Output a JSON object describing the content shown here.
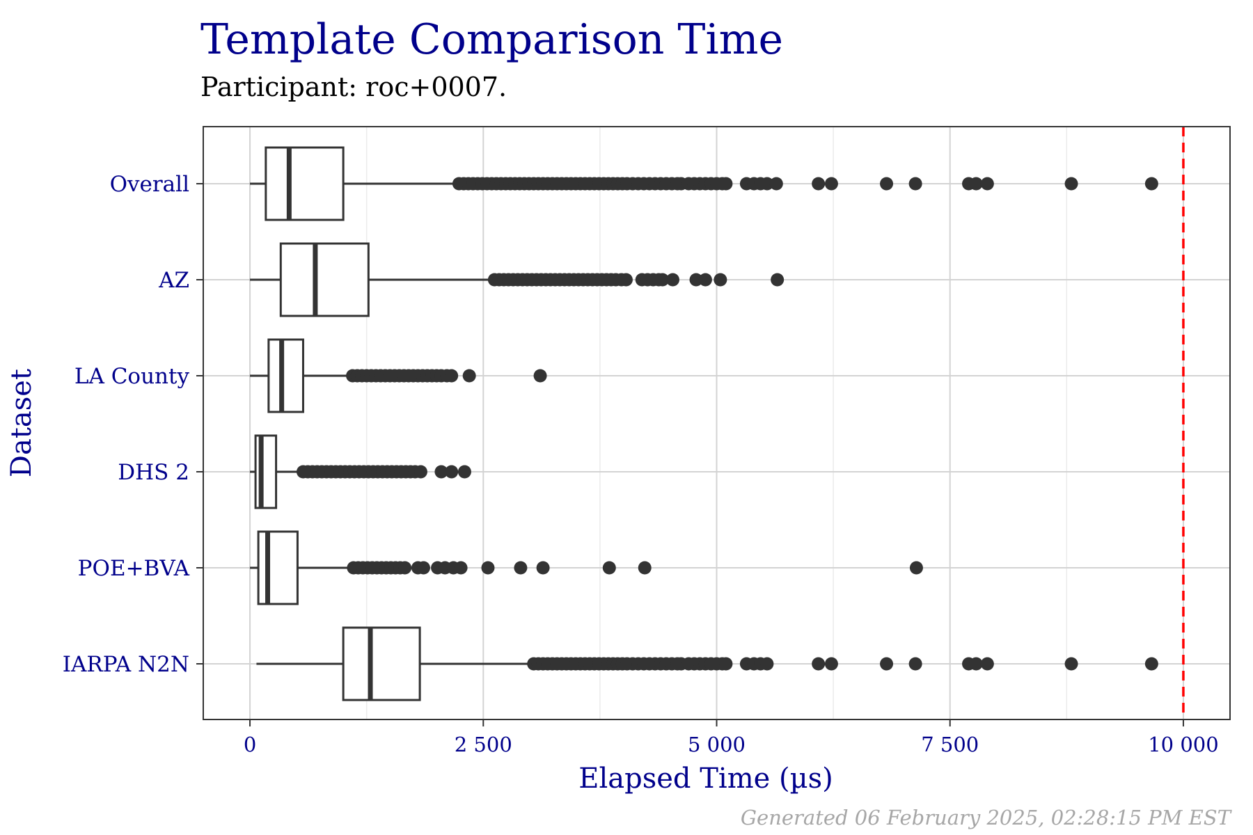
{
  "title": "Template Comparison Time",
  "subtitle": "Participant: roc+0007.",
  "caption": "Generated 06 February 2025, 02:28:15 PM EST",
  "colors": {
    "text_accent": "#00008b",
    "box_stroke": "#333333",
    "grid": "#d3d3d3",
    "threshold": "#ff0000"
  },
  "chart_data": {
    "type": "boxplot",
    "orientation": "horizontal",
    "xlabel": "Elapsed Time (µs)",
    "ylabel": "Dataset",
    "xlim": [
      -500,
      10500
    ],
    "x_ticks": [
      0,
      2500,
      5000,
      7500,
      10000
    ],
    "x_tick_labels": [
      "0",
      "2 500",
      "5 000",
      "7 500",
      "10 000"
    ],
    "grid": true,
    "threshold": {
      "value": 10000,
      "style": "dashed",
      "color": "#ff0000"
    },
    "categories": [
      "Overall",
      "AZ",
      "LA County",
      "DHS 2",
      "POE+BVA",
      "IARPA N2N"
    ],
    "boxes": [
      {
        "name": "Overall",
        "whisker_low": 0,
        "q1": 170,
        "median": 420,
        "q3": 1000,
        "whisker_high": 2230,
        "outliers": [
          2240,
          2290,
          2340,
          2390,
          2440,
          2490,
          2540,
          2590,
          2640,
          2690,
          2740,
          2790,
          2840,
          2890,
          2940,
          2990,
          3040,
          3090,
          3140,
          3190,
          3240,
          3290,
          3340,
          3390,
          3440,
          3490,
          3540,
          3590,
          3640,
          3690,
          3740,
          3790,
          3840,
          3890,
          3940,
          3990,
          4040,
          4100,
          4160,
          4220,
          4280,
          4340,
          4400,
          4460,
          4520,
          4580,
          4620,
          4700,
          4760,
          4820,
          4880,
          4940,
          5000,
          5060,
          5100,
          5320,
          5400,
          5470,
          5540,
          5640,
          6090,
          6230,
          6820,
          7130,
          7700,
          7780,
          7900,
          8800,
          9660
        ]
      },
      {
        "name": "AZ",
        "whisker_low": 0,
        "q1": 330,
        "median": 700,
        "q3": 1270,
        "whisker_high": 2600,
        "outliers": [
          2620,
          2670,
          2720,
          2770,
          2820,
          2870,
          2920,
          2970,
          3020,
          3070,
          3120,
          3170,
          3220,
          3270,
          3320,
          3370,
          3420,
          3470,
          3520,
          3570,
          3620,
          3670,
          3720,
          3770,
          3820,
          3870,
          3920,
          3980,
          4030,
          4200,
          4260,
          4320,
          4380,
          4420,
          4530,
          4780,
          4880,
          5040,
          5650
        ]
      },
      {
        "name": "LA County",
        "whisker_low": 0,
        "q1": 200,
        "median": 340,
        "q3": 570,
        "whisker_high": 1080,
        "outliers": [
          1100,
          1150,
          1200,
          1250,
          1300,
          1350,
          1400,
          1450,
          1500,
          1550,
          1600,
          1650,
          1700,
          1750,
          1800,
          1850,
          1900,
          1950,
          2000,
          2050,
          2110,
          2160,
          2350,
          3110
        ]
      },
      {
        "name": "DHS 2",
        "whisker_low": 0,
        "q1": 60,
        "median": 120,
        "q3": 280,
        "whisker_high": 550,
        "outliers": [
          570,
          620,
          670,
          720,
          770,
          820,
          870,
          920,
          970,
          1020,
          1070,
          1120,
          1170,
          1220,
          1270,
          1320,
          1370,
          1420,
          1470,
          1520,
          1570,
          1620,
          1670,
          1720,
          1770,
          1830,
          2050,
          2160,
          2300
        ]
      },
      {
        "name": "POE+BVA",
        "whisker_low": 0,
        "q1": 90,
        "median": 190,
        "q3": 510,
        "whisker_high": 1090,
        "outliers": [
          1110,
          1160,
          1210,
          1260,
          1310,
          1360,
          1410,
          1460,
          1510,
          1560,
          1610,
          1660,
          1800,
          1860,
          2010,
          2090,
          2180,
          2260,
          2550,
          2900,
          3140,
          3850,
          4230,
          7140
        ]
      },
      {
        "name": "IARPA N2N",
        "whisker_low": 70,
        "q1": 1000,
        "median": 1290,
        "q3": 1820,
        "whisker_high": 3020,
        "outliers": [
          3040,
          3090,
          3140,
          3190,
          3240,
          3290,
          3340,
          3390,
          3440,
          3490,
          3540,
          3590,
          3640,
          3690,
          3740,
          3790,
          3840,
          3890,
          3940,
          3990,
          4040,
          4100,
          4160,
          4220,
          4280,
          4340,
          4400,
          4460,
          4520,
          4580,
          4620,
          4700,
          4760,
          4820,
          4880,
          4940,
          5000,
          5060,
          5100,
          5320,
          5400,
          5470,
          5540,
          6090,
          6230,
          6820,
          7130,
          7700,
          7780,
          7900,
          8800,
          9660
        ]
      }
    ]
  }
}
